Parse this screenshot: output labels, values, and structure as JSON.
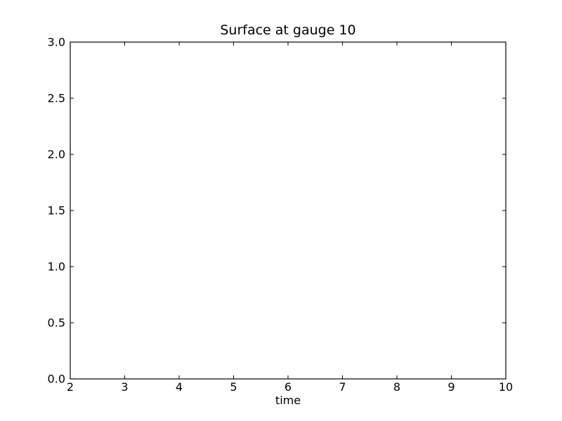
{
  "chart_data": {
    "type": "line",
    "title": "Surface at gauge 10",
    "xlabel": "time",
    "ylabel": "",
    "xlim": [
      2,
      10
    ],
    "ylim": [
      0.0,
      3.0
    ],
    "xticks": [
      2,
      3,
      4,
      5,
      6,
      7,
      8,
      9,
      10
    ],
    "xtick_labels": [
      "2",
      "3",
      "4",
      "5",
      "6",
      "7",
      "8",
      "9",
      "10"
    ],
    "yticks": [
      0.0,
      0.5,
      1.0,
      1.5,
      2.0,
      2.5,
      3.0
    ],
    "ytick_labels": [
      "0.0",
      "0.5",
      "1.0",
      "1.5",
      "2.0",
      "2.5",
      "3.0"
    ],
    "series": [],
    "grid": false
  }
}
